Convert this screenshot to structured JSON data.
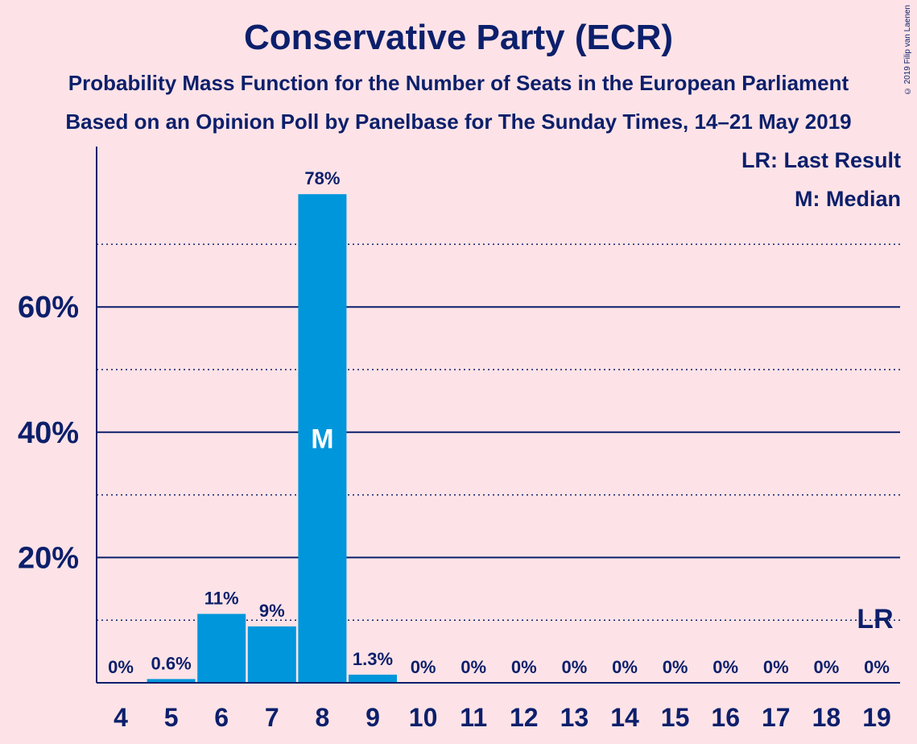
{
  "title": "Conservative Party (ECR)",
  "subtitle_1": "Probability Mass Function for the Number of Seats in the European Parliament",
  "subtitle_2": "Based on an Opinion Poll by Panelbase for The Sunday Times, 14–21 May 2019",
  "copyright": "© 2019 Filip van Laenen",
  "legend": {
    "last_result": "LR: Last Result",
    "median": "M: Median"
  },
  "colors": {
    "background": "#fde3e7",
    "bar": "#0096db",
    "text": "#0c1f6b"
  },
  "chart_data": {
    "type": "bar",
    "categories": [
      "4",
      "5",
      "6",
      "7",
      "8",
      "9",
      "10",
      "11",
      "12",
      "13",
      "14",
      "15",
      "16",
      "17",
      "18",
      "19"
    ],
    "values": [
      0,
      0.6,
      11,
      9,
      78,
      1.3,
      0,
      0,
      0,
      0,
      0,
      0,
      0,
      0,
      0,
      0
    ],
    "value_labels": [
      "0%",
      "0.6%",
      "11%",
      "9%",
      "78%",
      "1.3%",
      "0%",
      "0%",
      "0%",
      "0%",
      "0%",
      "0%",
      "0%",
      "0%",
      "0%",
      "0%"
    ],
    "ylim": [
      0,
      85
    ],
    "yticks": [
      20,
      40,
      60
    ],
    "ytick_labels": [
      "20%",
      "40%",
      "60%"
    ],
    "minor_gridlines": [
      10,
      30,
      50,
      70
    ],
    "median_seat": "8",
    "median_label": "M",
    "last_result_seat": "19",
    "last_result_value": 10,
    "last_result_label": "LR"
  }
}
